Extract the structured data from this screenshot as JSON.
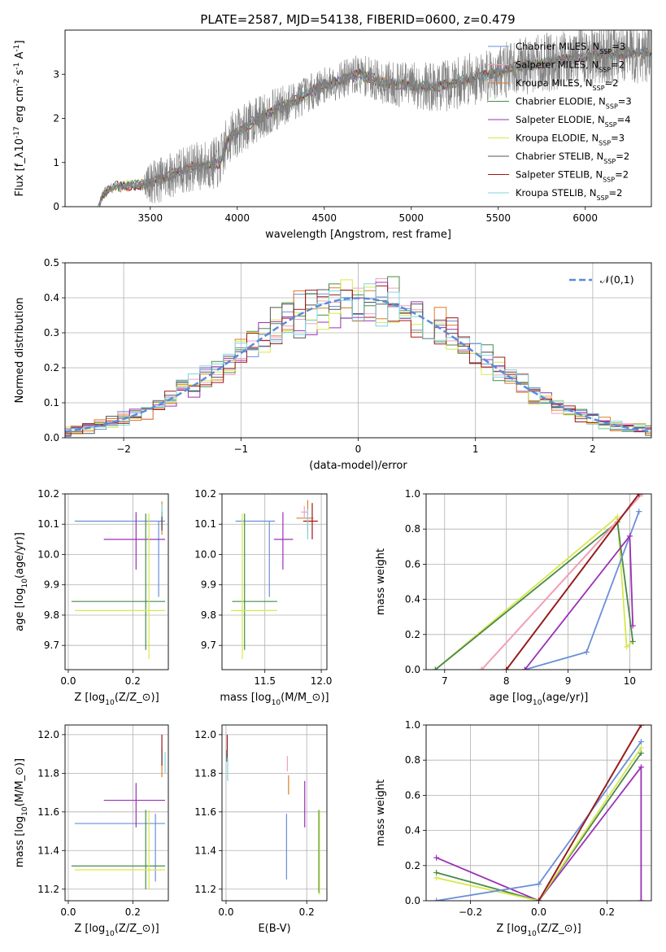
{
  "figure": {
    "title": "PLATE=2587, MJD=54138, FIBERID=0600, z=0.479"
  },
  "chart_data": [
    {
      "id": "spectrum",
      "type": "line",
      "xlabel": "wavelength [Angstrom, rest frame]",
      "ylabel": "Flux [f$_λ$10$^{-17}$ erg cm$^{-2}$ s$^{-1}$ A$^{-1}$]",
      "xlim": [
        3010,
        6380
      ],
      "ylim": [
        0,
        4.0
      ],
      "xticks": [
        3500,
        4000,
        4500,
        5000,
        5500,
        6000
      ],
      "yticks": [
        0,
        1,
        2,
        3
      ],
      "observed": {
        "color": "#808080",
        "continuum": [
          [
            3200,
            0.0
          ],
          [
            3230,
            0.3
          ],
          [
            3300,
            0.45
          ],
          [
            3450,
            0.5
          ],
          [
            3550,
            0.6
          ],
          [
            3700,
            0.85
          ],
          [
            3900,
            1.0
          ],
          [
            3950,
            1.55
          ],
          [
            4100,
            1.95
          ],
          [
            4300,
            2.35
          ],
          [
            4500,
            2.75
          ],
          [
            4700,
            3.0
          ],
          [
            4850,
            2.8
          ],
          [
            5000,
            2.75
          ],
          [
            5150,
            2.7
          ],
          [
            5300,
            2.85
          ],
          [
            5600,
            3.15
          ],
          [
            5900,
            3.35
          ],
          [
            6100,
            3.45
          ],
          [
            6380,
            3.5
          ]
        ],
        "noise_levels": [
          [
            3200,
            0.05
          ],
          [
            3450,
            0.1
          ],
          [
            3500,
            0.5
          ],
          [
            3900,
            0.6
          ],
          [
            4500,
            0.4
          ],
          [
            5200,
            0.6
          ],
          [
            6000,
            0.7
          ],
          [
            6380,
            0.7
          ]
        ]
      },
      "legend": [
        {
          "name": "Chabrier MILES, N$_{SSP}$=3",
          "color": "#6a8fd8"
        },
        {
          "name": "Salpeter MILES, N$_{SSP}$=2",
          "color": "#f2a0c0"
        },
        {
          "name": "Kroupa MILES, N$_{SSP}$=2",
          "color": "#e07b28"
        },
        {
          "name": "Chabrier ELODIE, N$_{SSP}$=3",
          "color": "#4a8a4a"
        },
        {
          "name": "Salpeter ELODIE, N$_{SSP}$=4",
          "color": "#9b30b5"
        },
        {
          "name": "Kroupa ELODIE, N$_{SSP}$=3",
          "color": "#d6e84a"
        },
        {
          "name": "Chabrier STELIB, N$_{SSP}$=2",
          "color": "#555555"
        },
        {
          "name": "Salpeter STELIB, N$_{SSP}$=2",
          "color": "#a01818"
        },
        {
          "name": "Kroupa STELIB, N$_{SSP}$=2",
          "color": "#7fd6e0"
        }
      ]
    },
    {
      "id": "residuals",
      "type": "histogram",
      "xlabel": "(data-model)/error",
      "ylabel": "Normed distribution",
      "xlim": [
        -2.5,
        2.5
      ],
      "ylim": [
        0,
        0.5
      ],
      "xticks": [
        -2,
        -1,
        0,
        1,
        2
      ],
      "yticks": [
        0.0,
        0.1,
        0.2,
        0.3,
        0.4,
        0.5
      ],
      "grid": true,
      "legend_position": "top-right",
      "reference_curve": {
        "name": "$\\mathcal{N}(0,1)$",
        "color": "#5b8bd8",
        "mean": 0,
        "std": 1
      },
      "bin_width": 0.1,
      "series_colors": [
        "#6a8fd8",
        "#f2a0c0",
        "#e07b28",
        "#4a8a4a",
        "#9b30b5",
        "#d6e84a",
        "#555555",
        "#a01818",
        "#7fd6e0"
      ]
    },
    {
      "id": "age_vs_Z",
      "type": "scatter",
      "xlabel": "Z [log$_{10}$($Z/Z_\\odot$)]",
      "ylabel": "age  [log$_{10}$($age/yr$)]",
      "xlim": [
        -0.01,
        0.31
      ],
      "ylim": [
        9.62,
        10.2
      ],
      "xticks": [
        0.0,
        0.2
      ],
      "yticks": [
        9.7,
        9.8,
        9.9,
        10.0,
        10.1,
        10.2
      ],
      "grid": true,
      "points": [
        {
          "color": "#6a8fd8",
          "x": 0.28,
          "xerr": [
            0.26,
            0.02
          ],
          "y": 10.11,
          "yerr": [
            0.25,
            0.0
          ]
        },
        {
          "color": "#9b30b5",
          "x": 0.21,
          "xerr": [
            0.1,
            0.09
          ],
          "y": 10.05,
          "yerr": [
            0.1,
            0.09
          ]
        },
        {
          "color": "#4a8a4a",
          "x": 0.24,
          "xerr": [
            0.23,
            0.06
          ],
          "y": 9.845,
          "yerr": [
            0.16,
            0.29
          ]
        },
        {
          "color": "#d6e84a",
          "x": 0.25,
          "xerr": [
            0.23,
            0.05
          ],
          "y": 9.815,
          "yerr": [
            0.16,
            0.32
          ]
        },
        {
          "color": "#e07b28",
          "x": 0.29,
          "xerr": [
            0.0,
            0.0
          ],
          "y": 10.115,
          "yerr": [
            0.05,
            0.06
          ]
        },
        {
          "color": "#a01818",
          "x": 0.29,
          "xerr": [
            0.0,
            0.0
          ],
          "y": 10.11,
          "yerr": [
            0.03,
            0.03
          ]
        },
        {
          "color": "#555555",
          "x": 0.29,
          "xerr": [
            0.0,
            0.0
          ],
          "y": 10.11,
          "yerr": [
            0.03,
            0.03
          ]
        },
        {
          "color": "#7fd6e0",
          "x": 0.29,
          "xerr": [
            0.0,
            0.0
          ],
          "y": 10.145,
          "yerr": [
            0.02,
            0.02
          ]
        }
      ]
    },
    {
      "id": "age_vs_mass",
      "type": "scatter",
      "xlabel": "mass [log$_{10}$($M/M_\\odot$)]",
      "ylabel": "",
      "xlim": [
        11.12,
        12.05
      ],
      "ylim": [
        9.62,
        10.2
      ],
      "xticks": [
        11.5,
        12.0
      ],
      "yticks": [
        9.7,
        9.8,
        9.9,
        10.0,
        10.1,
        10.2
      ],
      "grid": true,
      "points": [
        {
          "color": "#6a8fd8",
          "x": 11.54,
          "xerr": [
            0.3,
            0.05
          ],
          "y": 10.11,
          "yerr": [
            0.25,
            0.0
          ]
        },
        {
          "color": "#9b30b5",
          "x": 11.66,
          "xerr": [
            0.08,
            0.09
          ],
          "y": 10.05,
          "yerr": [
            0.1,
            0.09
          ]
        },
        {
          "color": "#4a8a4a",
          "x": 11.32,
          "xerr": [
            0.11,
            0.29
          ],
          "y": 9.845,
          "yerr": [
            0.16,
            0.29
          ]
        },
        {
          "color": "#d6e84a",
          "x": 11.3,
          "xerr": [
            0.1,
            0.31
          ],
          "y": 9.815,
          "yerr": [
            0.16,
            0.32
          ]
        },
        {
          "color": "#e07b28",
          "x": 11.88,
          "xerr": [
            0.1,
            0.05
          ],
          "y": 10.12,
          "yerr": [
            0.05,
            0.06
          ]
        },
        {
          "color": "#f2a0c0",
          "x": 11.85,
          "xerr": [
            0.03,
            0.03
          ],
          "y": 10.14,
          "yerr": [
            0.02,
            0.02
          ]
        },
        {
          "color": "#a01818",
          "x": 11.92,
          "xerr": [
            0.08,
            0.05
          ],
          "y": 10.11,
          "yerr": [
            0.06,
            0.06
          ]
        },
        {
          "color": "#7fd6e0",
          "x": 11.88,
          "xerr": [
            0.0,
            0.0
          ],
          "y": 10.1,
          "yerr": [
            0.05,
            0.05
          ]
        }
      ]
    },
    {
      "id": "massweight_vs_age",
      "type": "line",
      "xlabel": "age  [log$_{10}$($age/yr$)]",
      "ylabel": "mass weight",
      "xlim": [
        6.7,
        10.35
      ],
      "ylim": [
        0,
        1.0
      ],
      "xticks": [
        7,
        8,
        9,
        10
      ],
      "yticks": [
        0.0,
        0.2,
        0.4,
        0.6,
        0.8,
        1.0
      ],
      "grid": true,
      "series": [
        {
          "color": "#d6e84a",
          "points": [
            [
              6.85,
              0.0
            ],
            [
              9.8,
              0.87
            ],
            [
              9.95,
              0.13
            ],
            [
              10.05,
              0.16
            ]
          ]
        },
        {
          "color": "#4a8a4a",
          "points": [
            [
              6.85,
              0.0
            ],
            [
              9.8,
              0.84
            ],
            [
              10.05,
              0.16
            ]
          ]
        },
        {
          "color": "#e07b28",
          "points": [
            [
              7.6,
              0.0
            ],
            [
              10.2,
              1.0
            ]
          ]
        },
        {
          "color": "#f2a0c0",
          "points": [
            [
              7.6,
              0.0
            ],
            [
              10.2,
              1.0
            ]
          ]
        },
        {
          "color": "#7fd6e0",
          "points": [
            [
              8.0,
              0.0
            ],
            [
              10.15,
              1.0
            ]
          ]
        },
        {
          "color": "#555555",
          "points": [
            [
              8.0,
              0.0
            ],
            [
              10.15,
              1.0
            ]
          ]
        },
        {
          "color": "#a01818",
          "points": [
            [
              8.0,
              0.0
            ],
            [
              10.15,
              1.0
            ]
          ]
        },
        {
          "color": "#6a8fd8",
          "points": [
            [
              8.3,
              0.0
            ],
            [
              9.3,
              0.1
            ],
            [
              10.15,
              0.9
            ]
          ]
        },
        {
          "color": "#9b30b5",
          "points": [
            [
              8.3,
              0.0
            ],
            [
              10.0,
              0.76
            ],
            [
              10.05,
              0.25
            ]
          ]
        }
      ]
    },
    {
      "id": "mass_vs_Z",
      "type": "scatter",
      "xlabel": "Z [log$_{10}$($Z/Z_\\odot$)]",
      "ylabel": "mass [log$_{10}$($M/M_\\odot$)]",
      "xlim": [
        -0.01,
        0.31
      ],
      "ylim": [
        11.14,
        12.05
      ],
      "xticks": [
        0.0,
        0.2
      ],
      "yticks": [
        11.2,
        11.4,
        11.6,
        11.8,
        12.0
      ],
      "grid": true,
      "points": [
        {
          "color": "#6a8fd8",
          "x": 0.27,
          "xerr": [
            0.25,
            0.03
          ],
          "y": 11.54,
          "yerr": [
            0.3,
            0.05
          ]
        },
        {
          "color": "#9b30b5",
          "x": 0.21,
          "xerr": [
            0.1,
            0.09
          ],
          "y": 11.66,
          "yerr": [
            0.14,
            0.09
          ]
        },
        {
          "color": "#4a8a4a",
          "x": 0.24,
          "xerr": [
            0.23,
            0.06
          ],
          "y": 11.32,
          "yerr": [
            0.12,
            0.29
          ]
        },
        {
          "color": "#d6e84a",
          "x": 0.25,
          "xerr": [
            0.23,
            0.05
          ],
          "y": 11.3,
          "yerr": [
            0.1,
            0.31
          ]
        },
        {
          "color": "#e07b28",
          "x": 0.29,
          "xerr": [
            0.0,
            0.0
          ],
          "y": 11.88,
          "yerr": [
            0.1,
            0.05
          ]
        },
        {
          "color": "#a01818",
          "x": 0.29,
          "xerr": [
            0.0,
            0.0
          ],
          "y": 11.92,
          "yerr": [
            0.08,
            0.08
          ]
        },
        {
          "color": "#555555",
          "x": 0.29,
          "xerr": [
            0.0,
            0.0
          ],
          "y": 11.88,
          "yerr": [
            0.02,
            0.02
          ]
        },
        {
          "color": "#7fd6e0",
          "x": 0.3,
          "xerr": [
            0.0,
            0.0
          ],
          "y": 11.86,
          "yerr": [
            0.06,
            0.05
          ]
        }
      ]
    },
    {
      "id": "mass_vs_EBV",
      "type": "scatter",
      "xlabel": "E(B-V)",
      "ylabel": "",
      "xlim": [
        -0.01,
        0.25
      ],
      "ylim": [
        11.14,
        12.05
      ],
      "xticks": [
        0.0,
        0.2
      ],
      "yticks": [
        11.2,
        11.4,
        11.6,
        11.8,
        12.0
      ],
      "grid": true,
      "points": [
        {
          "color": "#6a8fd8",
          "x": 0.15,
          "y": 11.42,
          "yerr": [
            0.17,
            0.17
          ]
        },
        {
          "color": "#f2a0c0",
          "x": 0.152,
          "y": 11.85,
          "yerr": [
            0.04,
            0.04
          ]
        },
        {
          "color": "#e07b28",
          "x": 0.155,
          "y": 11.74,
          "yerr": [
            0.05,
            0.05
          ]
        },
        {
          "color": "#9b30b5",
          "x": 0.195,
          "y": 11.62,
          "yerr": [
            0.1,
            0.14
          ]
        },
        {
          "color": "#4a8a4a",
          "x": 0.23,
          "y": 11.39,
          "yerr": [
            0.21,
            0.22
          ]
        },
        {
          "color": "#d6e84a",
          "x": 0.232,
          "y": 11.39,
          "yerr": [
            0.22,
            0.22
          ]
        },
        {
          "color": "#a01818",
          "x": 0.003,
          "y": 11.93,
          "yerr": [
            0.05,
            0.07
          ]
        },
        {
          "color": "#555555",
          "x": 0.002,
          "y": 11.89,
          "yerr": [
            0.03,
            0.03
          ]
        },
        {
          "color": "#7fd6e0",
          "x": 0.004,
          "y": 11.82,
          "yerr": [
            0.06,
            0.06
          ]
        }
      ]
    },
    {
      "id": "massweight_vs_Z",
      "type": "line",
      "xlabel": "Z [log$_{10}$($Z/Z_\\odot$)]",
      "ylabel": "mass weight",
      "xlim": [
        -0.33,
        0.33
      ],
      "ylim": [
        0,
        1.0
      ],
      "xticks": [
        -0.2,
        0.0,
        0.2
      ],
      "yticks": [
        0.0,
        0.2,
        0.4,
        0.6,
        0.8,
        1.0
      ],
      "grid": true,
      "series": [
        {
          "color": "#9b30b5",
          "points": [
            [
              -0.3,
              0.245
            ],
            [
              0.0,
              0.0
            ],
            [
              0.3,
              0.76
            ],
            [
              0.3,
              0.0
            ]
          ]
        },
        {
          "color": "#4a8a4a",
          "points": [
            [
              -0.3,
              0.16
            ],
            [
              0.0,
              0.0
            ],
            [
              0.3,
              0.84
            ]
          ]
        },
        {
          "color": "#d6e84a",
          "points": [
            [
              -0.3,
              0.13
            ],
            [
              0.0,
              0.0
            ],
            [
              0.3,
              0.87
            ]
          ]
        },
        {
          "color": "#6a8fd8",
          "points": [
            [
              -0.3,
              0.0
            ],
            [
              0.0,
              0.095
            ],
            [
              0.3,
              0.905
            ]
          ]
        },
        {
          "color": "#e07b28",
          "points": [
            [
              0.0,
              0.0
            ],
            [
              0.3,
              1.0
            ]
          ]
        },
        {
          "color": "#555555",
          "points": [
            [
              0.0,
              0.0
            ],
            [
              0.3,
              1.0
            ]
          ]
        },
        {
          "color": "#7fd6e0",
          "points": [
            [
              0.0,
              0.0
            ],
            [
              0.3,
              1.0
            ]
          ]
        },
        {
          "color": "#a01818",
          "points": [
            [
              0.0,
              0.0
            ],
            [
              0.3,
              1.0
            ]
          ]
        }
      ]
    }
  ]
}
